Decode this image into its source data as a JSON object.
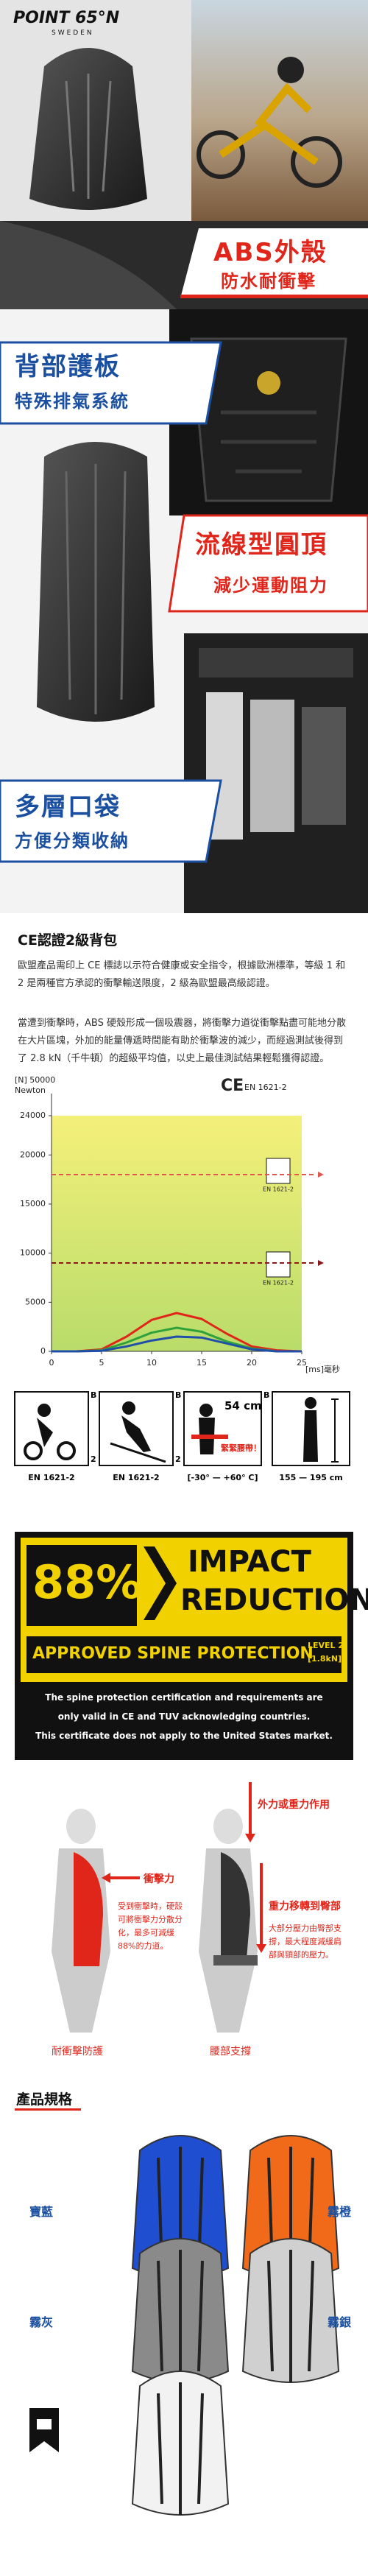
{
  "header": {
    "brand": "POINT 65°N",
    "sub": "SWEDEN"
  },
  "banners": [
    {
      "main": "ABS外殼",
      "sub": "防水耐衝擊"
    },
    {
      "main": "背部護板",
      "sub": "特殊排氣系統"
    },
    {
      "main": "流線型圓頂",
      "sub": "減少運動阻力"
    },
    {
      "main": "多層口袋",
      "sub": "方便分類收納"
    }
  ],
  "ce_section": {
    "title": "CE認證2級背包",
    "paragraphs": [
      "歐盟產品需印上 CE 標誌以示符合健康或安全指令，根據歐洲標準，等級 1 和 2 是兩種官方承認的衝擊輸送限度，2 級為歐盟最高級認證。",
      "當遭到衝擊時，ABS 硬殼形成一個吸震器，將衝擊力道從衝擊點盡可能地分散在大片區塊，外加的能量傳遞時間能有助於衝擊波的減少，而經過測試後得到了 2.8 kN（千牛頓）的超級平均值，以史上最佳測試結果輕鬆獲得認證。"
    ]
  },
  "chart_data": {
    "type": "line",
    "ce_mark": "CE",
    "standard_label": "EN 1621-2",
    "y_label_top": "[N] 50000",
    "y_unit": "Newton",
    "x_label": "[ms]毫秒",
    "icon_labels": [
      "EN 1621-2",
      "EN 1621-2"
    ],
    "x": [
      0,
      2.5,
      5,
      7.5,
      10,
      12.5,
      15,
      17.5,
      20,
      22.5,
      25
    ],
    "series": [
      {
        "color": "#e0261b",
        "values": [
          0,
          0,
          200,
          1500,
          3200,
          3900,
          3300,
          1800,
          500,
          100,
          0
        ]
      },
      {
        "color": "#2fa13a",
        "values": [
          0,
          0,
          100,
          900,
          1900,
          2400,
          2000,
          1000,
          300,
          0,
          0
        ]
      },
      {
        "color": "#1f4fa8",
        "values": [
          0,
          0,
          50,
          500,
          1100,
          1500,
          1400,
          800,
          200,
          0,
          0
        ]
      }
    ],
    "reference_lines": [
      {
        "value": 18000,
        "color": "#e0574f"
      },
      {
        "value": 9000,
        "color": "#8b1a1a"
      }
    ],
    "xlim": [
      0,
      25
    ],
    "ylim": [
      0,
      24000
    ],
    "xticks": [
      0,
      5,
      10,
      15,
      20,
      25
    ],
    "yticks": [
      0,
      5000,
      10000,
      15000,
      20000,
      24000
    ]
  },
  "cert_icons": [
    {
      "label": "EN 1621-2",
      "corner_top": "B",
      "corner_bottom": "2"
    },
    {
      "label": "EN 1621-2",
      "corner_top": "B",
      "corner_bottom": "2"
    },
    {
      "label": "[-30° — +60° C]",
      "corner_top": "B",
      "size": "54 cm",
      "note": "緊緊腰帶！"
    },
    {
      "label": "155 — 195 cm"
    }
  ],
  "impact_badge": {
    "percent": "88%",
    "title_1": "IMPACT",
    "title_2": "REDUCTION",
    "approved": "APPROVED SPINE PROTECTION",
    "level": "LEVEL 2",
    "level_kn": "[1.8kN]",
    "notes": [
      "The spine protection certification and requirements are",
      "only valid in CE and TUV acknowledging countries.",
      "This certificate does not apply to the United States market."
    ]
  },
  "diagrams": {
    "left": {
      "arrow": "衝擊力",
      "text": "受到衝擊時，硬殼可將衝擊力分散分化，最多可減緩88%的力道。",
      "caption": "耐衝擊防護"
    },
    "right": {
      "arrow_1": "外力或重力作用",
      "arrow_2": "重力移轉到臀部",
      "text": "大部分壓力由臀部支撐，最大程度減緩肩部與頸部的壓力。",
      "caption": "腰部支撐"
    }
  },
  "specs": {
    "title": "產品規格",
    "variants": [
      "寶藍",
      "霧橙",
      "霧灰",
      "霧銀"
    ]
  }
}
